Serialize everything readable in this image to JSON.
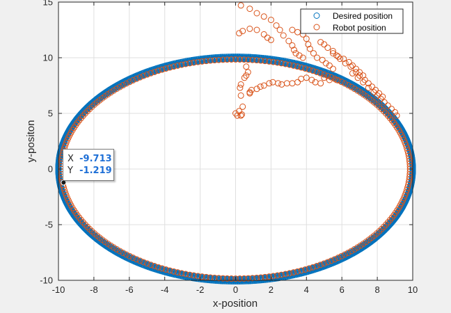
{
  "chart_data": {
    "type": "scatter",
    "xlabel": "x-position",
    "ylabel": "y-positon",
    "xlim": [
      -10,
      10
    ],
    "ylim": [
      -10,
      15
    ],
    "xticks": [
      "-10",
      "-8",
      "-6",
      "-4",
      "-2",
      "0",
      "2",
      "4",
      "6",
      "8",
      "10"
    ],
    "yticks": [
      "-10",
      "-5",
      "0",
      "5",
      "10",
      "15"
    ],
    "grid": true,
    "legend": "top-right",
    "series": [
      {
        "name": "Desired position",
        "color": "#0072bd",
        "marker": "open-circle",
        "shape": "circle",
        "center": [
          0,
          0
        ],
        "radius": 10,
        "count": 600
      },
      {
        "name": "Robot position",
        "color": "#d95319",
        "marker": "open-circle",
        "ring": {
          "shape": "circle",
          "center": [
            0,
            0
          ],
          "radius": 9.85,
          "count": 260
        },
        "points": [
          [
            0.0,
            5.0
          ],
          [
            0.1,
            4.8
          ],
          [
            0.3,
            4.8
          ],
          [
            0.2,
            5.2
          ],
          [
            0.35,
            4.9
          ],
          [
            0.4,
            5.6
          ],
          [
            0.3,
            6.6
          ],
          [
            0.25,
            7.3
          ],
          [
            0.3,
            7.6
          ],
          [
            0.5,
            8.2
          ],
          [
            0.6,
            8.4
          ],
          [
            0.7,
            8.7
          ],
          [
            0.6,
            9.2
          ],
          [
            0.8,
            6.9
          ],
          [
            0.8,
            6.8
          ],
          [
            0.9,
            7.1
          ],
          [
            1.2,
            7.2
          ],
          [
            1.4,
            7.4
          ],
          [
            1.6,
            7.5
          ],
          [
            1.9,
            7.7
          ],
          [
            2.1,
            7.8
          ],
          [
            2.4,
            7.7
          ],
          [
            2.6,
            7.6
          ],
          [
            2.9,
            7.7
          ],
          [
            3.2,
            7.7
          ],
          [
            3.5,
            7.8
          ],
          [
            3.7,
            8.1
          ],
          [
            4.0,
            8.2
          ],
          [
            4.3,
            8.0
          ],
          [
            4.5,
            7.8
          ],
          [
            4.8,
            7.7
          ],
          [
            5.0,
            8.2
          ],
          [
            5.3,
            8.0
          ],
          [
            5.7,
            8.0
          ],
          [
            0.2,
            12.2
          ],
          [
            0.4,
            12.4
          ],
          [
            0.8,
            12.6
          ],
          [
            1.2,
            12.5
          ],
          [
            1.6,
            12.1
          ],
          [
            1.8,
            11.8
          ],
          [
            2.0,
            11.6
          ],
          [
            0.3,
            14.7
          ],
          [
            0.8,
            14.4
          ],
          [
            1.2,
            14.0
          ],
          [
            1.6,
            13.7
          ],
          [
            2.0,
            13.4
          ],
          [
            2.3,
            12.9
          ],
          [
            2.5,
            12.5
          ],
          [
            2.7,
            12.0
          ],
          [
            3.0,
            11.5
          ],
          [
            3.2,
            11.1
          ],
          [
            3.3,
            10.7
          ],
          [
            3.4,
            10.4
          ],
          [
            3.6,
            10.2
          ],
          [
            3.8,
            10.0
          ],
          [
            3.2,
            12.5
          ],
          [
            3.5,
            12.3
          ],
          [
            3.8,
            12.1
          ],
          [
            4.0,
            11.7
          ],
          [
            4.1,
            11.2
          ],
          [
            4.2,
            10.8
          ],
          [
            4.4,
            10.4
          ],
          [
            4.6,
            10.0
          ],
          [
            4.9,
            9.8
          ],
          [
            5.1,
            9.5
          ],
          [
            5.3,
            9.3
          ],
          [
            5.5,
            9.0
          ],
          [
            4.8,
            11.4
          ],
          [
            5.0,
            11.2
          ],
          [
            5.2,
            10.9
          ],
          [
            5.5,
            10.6
          ],
          [
            5.8,
            10.1
          ],
          [
            6.1,
            9.9
          ],
          [
            6.4,
            9.6
          ],
          [
            6.6,
            9.3
          ],
          [
            6.8,
            9.0
          ],
          [
            7.0,
            8.7
          ],
          [
            7.2,
            8.4
          ],
          [
            5.5,
            10.4
          ],
          [
            5.7,
            10.2
          ],
          [
            5.9,
            9.9
          ],
          [
            6.2,
            9.5
          ],
          [
            6.5,
            9.2
          ],
          [
            6.8,
            8.7
          ],
          [
            7.0,
            8.4
          ],
          [
            7.3,
            8.0
          ],
          [
            7.5,
            7.7
          ],
          [
            7.7,
            7.4
          ],
          [
            7.9,
            7.1
          ],
          [
            8.1,
            6.8
          ],
          [
            8.3,
            6.5
          ],
          [
            6.6,
            8.6
          ],
          [
            6.9,
            8.2
          ],
          [
            7.2,
            7.8
          ],
          [
            7.5,
            7.3
          ],
          [
            7.8,
            6.9
          ],
          [
            8.0,
            6.6
          ],
          [
            8.2,
            6.3
          ],
          [
            8.4,
            6.0
          ],
          [
            8.6,
            5.7
          ],
          [
            8.8,
            5.4
          ],
          [
            9.0,
            5.1
          ],
          [
            9.1,
            4.8
          ]
        ]
      }
    ],
    "datatip": {
      "x": -9.713,
      "y": -1.219,
      "x_text": "-9.713",
      "y_text": "-1.219"
    }
  },
  "datatip": {
    "x_label": "X",
    "y_label": "Y",
    "x_value": "-9.713",
    "y_value": "-1.219"
  }
}
